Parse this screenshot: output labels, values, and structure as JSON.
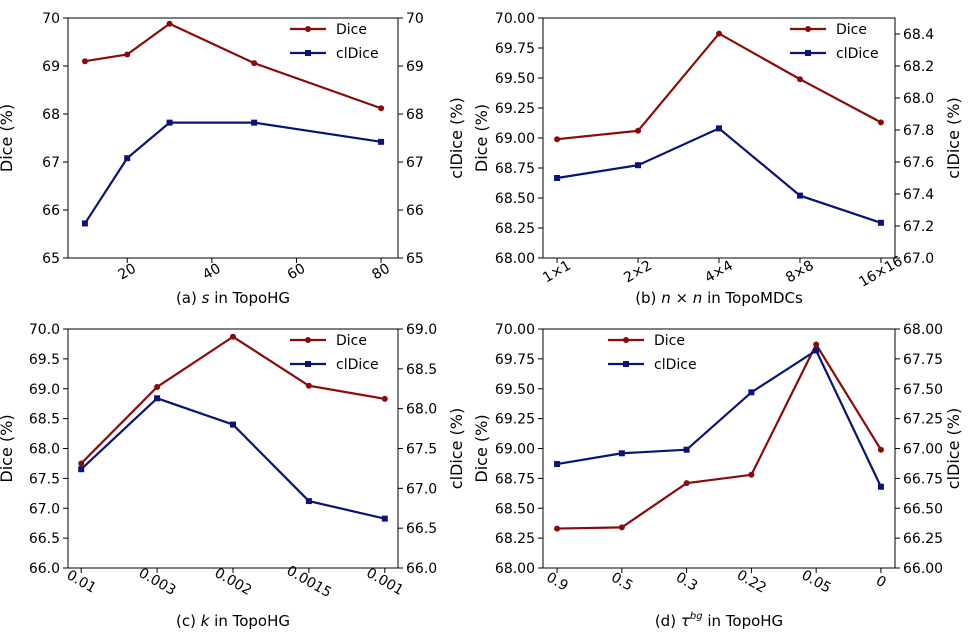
{
  "colors": {
    "dice": "#8b0a0a",
    "cldice": "#0a1478"
  },
  "chart_data": [
    {
      "type": "line",
      "caption": {
        "label": "(a)",
        "symbol": "s",
        "text": " in TopoHG"
      },
      "ylabel_left": "Dice (%)",
      "ylabel_right": "clDice (%)",
      "x_numeric": true,
      "x": [
        10,
        20,
        30,
        50,
        80
      ],
      "xlim": [
        6,
        84
      ],
      "xticks": [
        20,
        40,
        60,
        80
      ],
      "xtick_labels": [
        "20",
        "40",
        "60",
        "80"
      ],
      "ylim_left": [
        65,
        70
      ],
      "yticks_left": [
        "65",
        "66",
        "67",
        "68",
        "69",
        "70"
      ],
      "ylim_right": [
        65,
        70
      ],
      "yticks_right": [
        "65",
        "66",
        "67",
        "68",
        "69",
        "70"
      ],
      "series": [
        {
          "name": "Dice",
          "axis": "left",
          "values": [
            69.1,
            69.24,
            69.88,
            69.06,
            68.12
          ]
        },
        {
          "name": "clDice",
          "axis": "right",
          "values": [
            65.72,
            67.08,
            67.82,
            67.82,
            67.42
          ]
        }
      ],
      "legend": {
        "position": "top-right",
        "entries": [
          "Dice",
          "clDice"
        ]
      }
    },
    {
      "type": "line",
      "caption": {
        "label": "(b)",
        "symbol": "n × n",
        "text": " in TopoMDCs"
      },
      "ylabel_left": "Dice (%)",
      "ylabel_right": "clDice (%)",
      "x_numeric": false,
      "categories": [
        "1×1",
        "2×2",
        "4×4",
        "8×8",
        "16×16"
      ],
      "ylim_left": [
        68.0,
        70.0
      ],
      "yticks_left": [
        "68.00",
        "68.25",
        "68.50",
        "68.75",
        "69.00",
        "69.25",
        "69.50",
        "69.75",
        "70.00"
      ],
      "ylim_right": [
        67.0,
        68.5
      ],
      "yticks_right": [
        "67.0",
        "67.2",
        "67.4",
        "67.6",
        "67.8",
        "68.0",
        "68.2",
        "68.4"
      ],
      "series": [
        {
          "name": "Dice",
          "axis": "left",
          "values": [
            68.99,
            69.06,
            69.87,
            69.49,
            69.13
          ]
        },
        {
          "name": "clDice",
          "axis": "right",
          "values": [
            67.5,
            67.58,
            67.81,
            67.39,
            67.22
          ]
        }
      ],
      "legend": {
        "position": "top-right",
        "entries": [
          "Dice",
          "clDice"
        ]
      }
    },
    {
      "type": "line",
      "caption": {
        "label": "(c)",
        "symbol": "k",
        "text": " in TopoHG"
      },
      "ylabel_left": "Dice (%)",
      "ylabel_right": "clDice (%)",
      "x_numeric": false,
      "categories": [
        "0.01",
        "0.003",
        "0.002",
        "0.0015",
        "0.001"
      ],
      "ylim_left": [
        66.0,
        70.0
      ],
      "yticks_left": [
        "66.0",
        "66.5",
        "67.0",
        "67.5",
        "68.0",
        "68.5",
        "69.0",
        "69.5",
        "70.0"
      ],
      "ylim_right": [
        66.0,
        69.0
      ],
      "yticks_right": [
        "66.0",
        "66.5",
        "67.0",
        "67.5",
        "68.0",
        "68.5",
        "69.0"
      ],
      "series": [
        {
          "name": "Dice",
          "axis": "left",
          "values": [
            67.75,
            69.03,
            69.87,
            69.05,
            68.83
          ]
        },
        {
          "name": "clDice",
          "axis": "right",
          "values": [
            67.24,
            68.13,
            67.8,
            66.84,
            66.62
          ]
        }
      ],
      "legend": {
        "position": "top-right",
        "entries": [
          "Dice",
          "clDice"
        ]
      }
    },
    {
      "type": "line",
      "caption": {
        "label": "(d)",
        "symbol": "τ",
        "symbol_sup": "bg",
        "text": " in TopoHG"
      },
      "ylabel_left": "Dice (%)",
      "ylabel_right": "clDice (%)",
      "x_numeric": false,
      "categories": [
        "0.9",
        "0.5",
        "0.3",
        "0.22",
        "0.05",
        "0"
      ],
      "ylim_left": [
        68.0,
        70.0
      ],
      "yticks_left": [
        "68.00",
        "68.25",
        "68.50",
        "68.75",
        "69.00",
        "69.25",
        "69.50",
        "69.75",
        "70.00"
      ],
      "ylim_right": [
        66.0,
        68.0
      ],
      "yticks_right": [
        "66.00",
        "66.25",
        "66.50",
        "66.75",
        "67.00",
        "67.25",
        "67.50",
        "67.75",
        "68.00"
      ],
      "series": [
        {
          "name": "Dice",
          "axis": "left",
          "values": [
            68.33,
            68.34,
            68.71,
            68.78,
            69.87,
            68.99
          ]
        },
        {
          "name": "clDice",
          "axis": "right",
          "values": [
            66.87,
            66.96,
            66.99,
            67.47,
            67.82,
            66.68
          ]
        }
      ],
      "legend": {
        "position": "top-left",
        "entries": [
          "Dice",
          "clDice"
        ]
      }
    }
  ]
}
